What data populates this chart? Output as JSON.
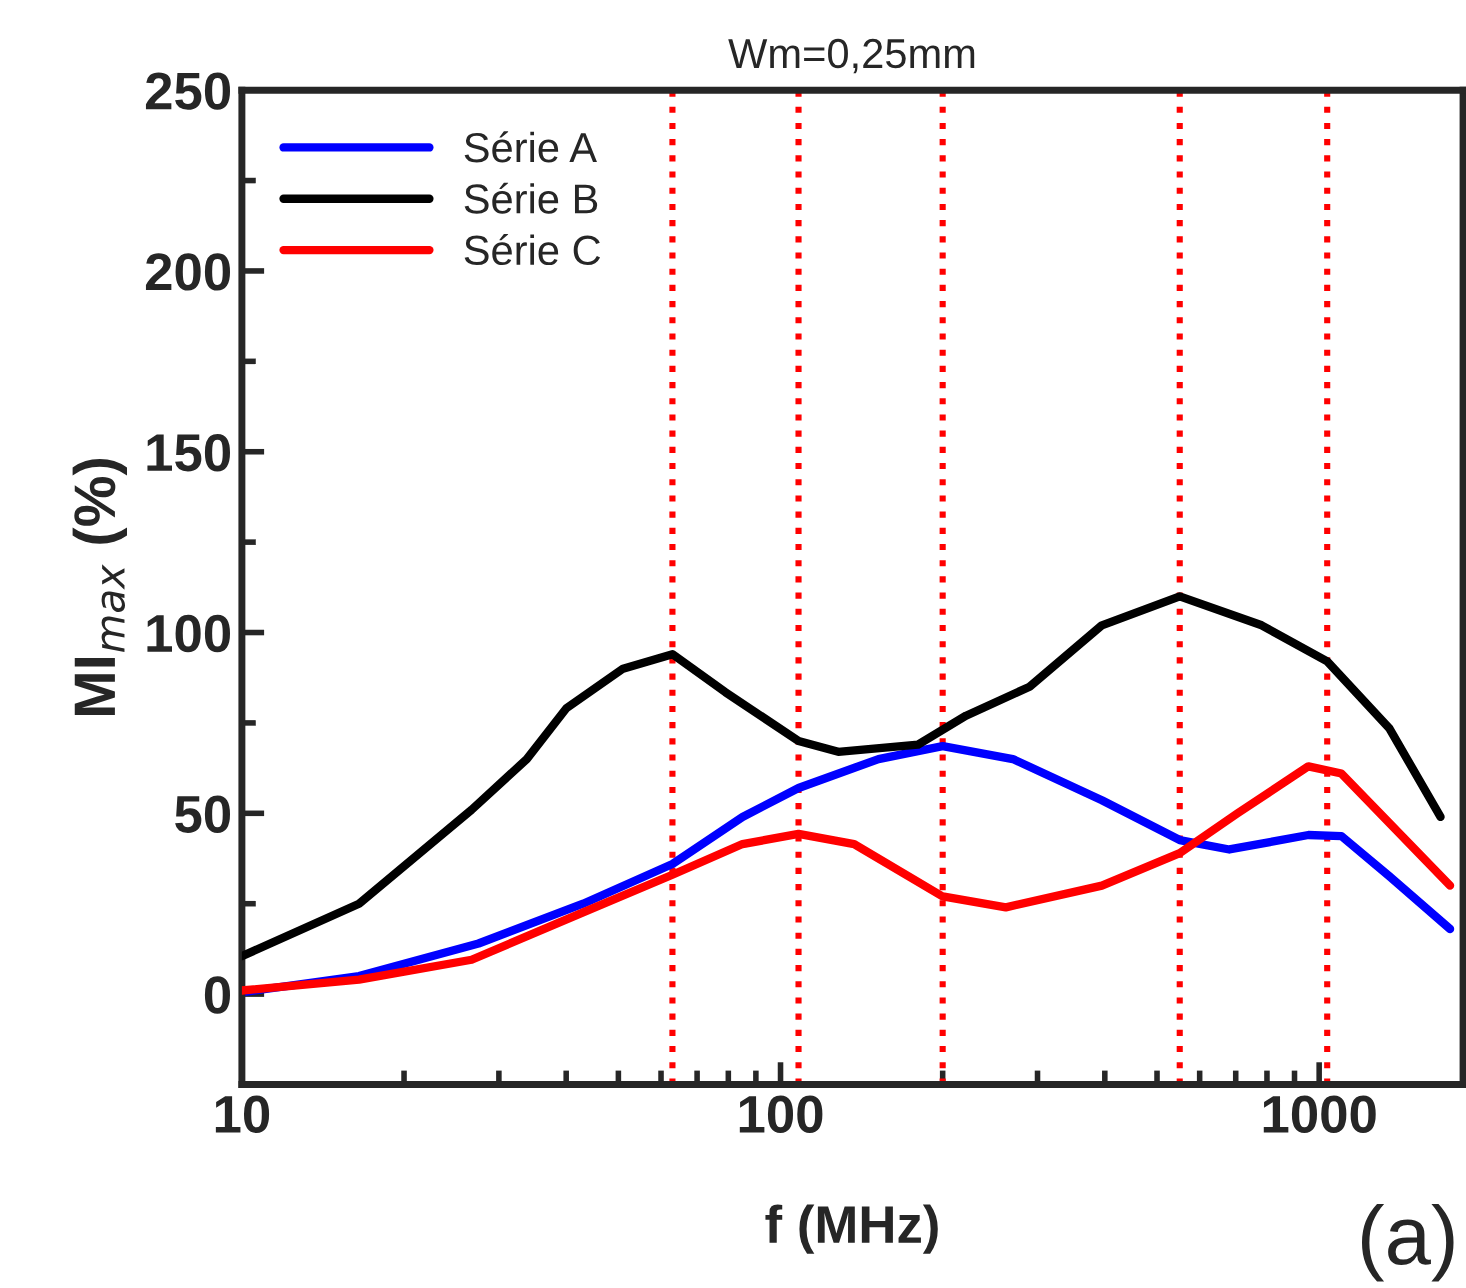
{
  "chart_data": {
    "type": "line",
    "title": "Wm=0,25mm",
    "xlabel": "f (MHz)",
    "ylabel": "MI$_{max}$ (%)",
    "log": "x",
    "xlim": [
      10,
      1850
    ],
    "xticks": [
      10,
      100,
      1000
    ],
    "ylim": [
      -25,
      250
    ],
    "yticks": [
      0,
      50,
      100,
      150,
      200,
      250
    ],
    "grid": false,
    "legend": "top left",
    "marker": "none",
    "line_style": "solid",
    "annotations": [
      "(a)"
    ],
    "ref_lines": [
      {
        "axis": "x",
        "value": 63,
        "color": "#ff0000",
        "line_style": "dotted"
      },
      {
        "axis": "x",
        "value": 108,
        "color": "#ff0000",
        "line_style": "dotted"
      },
      {
        "axis": "x",
        "value": 200,
        "color": "#ff0000",
        "line_style": "dotted"
      },
      {
        "axis": "x",
        "value": 551,
        "color": "#ff0000",
        "line_style": "dotted"
      },
      {
        "axis": "x",
        "value": 1035,
        "color": "#ff0000",
        "line_style": "dotted"
      }
    ],
    "series": [
      {
        "name": "Série A",
        "color": "#0000ff",
        "x": [
          10,
          16.5,
          27.5,
          43,
          63,
          85,
          108,
          152,
          200,
          270,
          395,
          551,
          681,
          955,
          1100,
          1350,
          1750
        ],
        "values": [
          0.5,
          5,
          14,
          25,
          36,
          49,
          57,
          65,
          68.6,
          65,
          53.6,
          42.6,
          40,
          44,
          43.7,
          32.6,
          18
        ]
      },
      {
        "name": "Série B",
        "color": "#000000",
        "x": [
          10,
          16.5,
          26.7,
          33.8,
          40,
          51,
          63,
          79,
          108,
          128,
          180,
          221,
          290,
          395,
          551,
          782,
          1035,
          1350,
          1680
        ],
        "values": [
          10.5,
          25,
          51,
          65,
          79,
          90,
          94,
          83.5,
          70,
          67,
          69,
          77,
          85,
          102,
          110,
          102,
          92,
          73.5,
          49
        ]
      },
      {
        "name": "Série C",
        "color": "#ff0000",
        "x": [
          10,
          16.5,
          26.7,
          43,
          63,
          85,
          108,
          137,
          200,
          262,
          395,
          551,
          705,
          955,
          1100,
          1750
        ],
        "values": [
          1,
          4,
          9.5,
          22.6,
          33,
          41.5,
          44.3,
          41.5,
          27,
          24,
          30,
          39,
          50,
          63,
          61,
          30
        ]
      }
    ]
  }
}
